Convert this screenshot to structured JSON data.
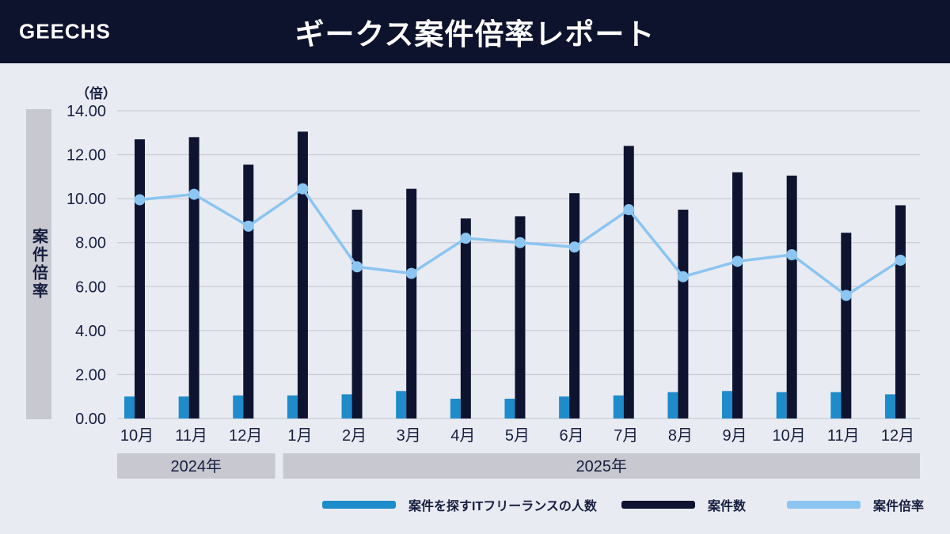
{
  "header": {
    "logo": "GEECHS",
    "title": "ギークス案件倍率レポート"
  },
  "colors": {
    "page_bg": "#e9ebf2",
    "header_bg": "#0d122d",
    "text_dark": "#161e3e",
    "band_gray": "#c7c8d0",
    "grid": "#c9cdd7"
  },
  "chart_data": {
    "type": "bar+line combo",
    "unit_label": "（倍）",
    "y_axis_label": "案件倍率",
    "ylim": [
      0,
      14
    ],
    "y_tick_step": 2,
    "y_tick_format_decimals": 2,
    "grid": true,
    "categories": [
      "10月",
      "11月",
      "12月",
      "1月",
      "2月",
      "3月",
      "4月",
      "5月",
      "6月",
      "7月",
      "8月",
      "9月",
      "10月",
      "11月",
      "12月"
    ],
    "year_groups": [
      {
        "label": "2024年",
        "span": 3
      },
      {
        "label": "2025年",
        "span": 12
      }
    ],
    "series": [
      {
        "name": "案件を探すITフリーランスの人数",
        "type": "bar",
        "color": "#1e8bca",
        "values": [
          1.0,
          1.0,
          1.05,
          1.05,
          1.1,
          1.25,
          0.9,
          0.9,
          1.0,
          1.05,
          1.2,
          1.25,
          1.2,
          1.2,
          1.1
        ]
      },
      {
        "name": "案件数",
        "type": "bar",
        "color": "#0e1330",
        "values": [
          12.7,
          12.8,
          11.55,
          13.05,
          9.5,
          10.45,
          9.1,
          9.2,
          10.25,
          12.4,
          9.5,
          11.2,
          11.05,
          8.45,
          9.7
        ]
      },
      {
        "name": "案件倍率",
        "type": "line",
        "color": "#8bc5f1",
        "values": [
          9.95,
          10.2,
          8.75,
          10.45,
          6.9,
          6.6,
          8.2,
          8.0,
          7.8,
          9.5,
          6.45,
          7.15,
          7.45,
          5.6,
          7.2
        ]
      }
    ],
    "legend_position": "bottom"
  }
}
